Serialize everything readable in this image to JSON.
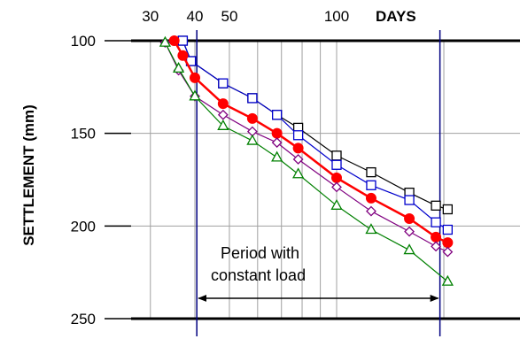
{
  "chart_data": {
    "type": "line",
    "xlabel": "DAYS",
    "ylabel": "SETTLEMENT (mm)",
    "xscale": "log",
    "yaxis_inverted": true,
    "xlim": [
      25,
      200
    ],
    "ylim": [
      100,
      250
    ],
    "x_ticks": [
      30,
      40,
      50,
      100
    ],
    "y_ticks": [
      100,
      150,
      200,
      250
    ],
    "grid": true,
    "legend": "none",
    "series": [
      {
        "color": "#000000",
        "marker": "open-square",
        "points": [
          [
            37,
            100
          ],
          [
            39,
            111
          ],
          [
            48,
            123
          ],
          [
            58,
            131
          ],
          [
            68,
            140
          ],
          [
            78,
            147
          ],
          [
            100,
            162
          ],
          [
            125,
            171
          ],
          [
            160,
            182
          ],
          [
            190,
            189
          ],
          [
            205,
            191
          ]
        ]
      },
      {
        "color": "#0000CC",
        "marker": "open-square",
        "points": [
          [
            37,
            100
          ],
          [
            39,
            111
          ],
          [
            48,
            123
          ],
          [
            58,
            131
          ],
          [
            68,
            140
          ],
          [
            78,
            151
          ],
          [
            100,
            167
          ],
          [
            125,
            178
          ],
          [
            160,
            186
          ],
          [
            190,
            198
          ],
          [
            205,
            202
          ]
        ]
      },
      {
        "color": "#FF0000",
        "marker": "filled-circle",
        "points": [
          [
            35,
            100
          ],
          [
            37,
            108
          ],
          [
            40,
            120
          ],
          [
            48,
            134
          ],
          [
            58,
            142
          ],
          [
            68,
            150
          ],
          [
            78,
            158
          ],
          [
            100,
            174
          ],
          [
            125,
            185
          ],
          [
            160,
            196
          ],
          [
            190,
            206
          ],
          [
            205,
            209
          ]
        ]
      },
      {
        "color": "#800080",
        "marker": "open-diamond",
        "points": [
          [
            33,
            101
          ],
          [
            36,
            116
          ],
          [
            40,
            130
          ],
          [
            48,
            140
          ],
          [
            58,
            149
          ],
          [
            68,
            155
          ],
          [
            78,
            164
          ],
          [
            100,
            179
          ],
          [
            125,
            192
          ],
          [
            160,
            203
          ],
          [
            190,
            211
          ],
          [
            205,
            214
          ]
        ]
      },
      {
        "color": "#008000",
        "marker": "open-triangle",
        "points": [
          [
            33,
            101
          ],
          [
            36,
            115
          ],
          [
            40,
            130
          ],
          [
            48,
            146
          ],
          [
            58,
            154
          ],
          [
            68,
            163
          ],
          [
            78,
            172
          ],
          [
            100,
            189
          ],
          [
            125,
            202
          ],
          [
            160,
            213
          ],
          [
            205,
            230
          ]
        ]
      }
    ],
    "reference_lines_x": [
      40.5,
      195
    ],
    "annotation": {
      "line1": "Period with",
      "line2": "constant load",
      "arrow_from_x": 40.5,
      "arrow_to_x": 195,
      "arrow_y": 239
    }
  }
}
